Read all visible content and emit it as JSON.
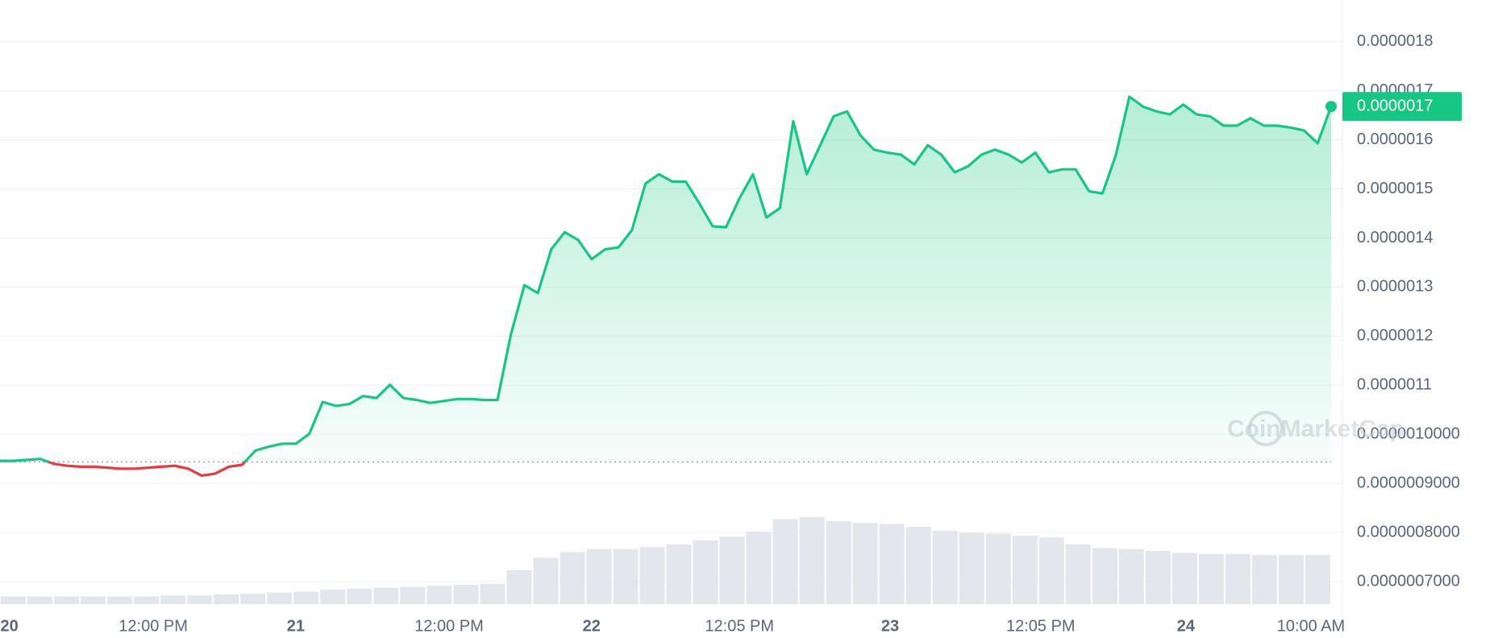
{
  "chart_data": {
    "type": "line",
    "x": [
      0,
      1,
      2,
      3,
      4,
      5,
      6,
      7,
      8,
      9,
      10,
      11,
      12,
      13,
      14,
      15,
      16,
      17,
      18,
      19,
      20,
      21,
      22,
      23,
      24,
      25,
      26,
      27,
      28,
      29,
      30,
      31,
      32,
      33,
      34,
      35,
      36,
      37,
      38,
      39,
      40,
      41,
      42,
      43,
      44,
      45,
      46,
      47,
      48,
      49,
      50,
      51,
      52,
      53,
      54,
      55,
      56,
      57,
      58,
      59,
      60,
      61,
      62,
      63,
      64,
      65,
      66,
      67,
      68,
      69,
      70,
      71,
      72,
      73,
      74,
      75,
      76,
      77,
      78,
      79,
      80,
      81,
      82,
      83,
      84,
      85,
      86,
      87,
      88,
      89,
      90,
      91,
      92,
      93,
      94,
      95,
      96,
      97,
      98,
      99
    ],
    "series": [
      {
        "color": "#16c784",
        "below_color": "#ea3943",
        "values": [
          9.46e-07,
          9.46e-07,
          9.48e-07,
          9.5e-07,
          9.4e-07,
          9.36e-07,
          9.34e-07,
          9.34e-07,
          9.32e-07,
          9.3e-07,
          9.3e-07,
          9.32e-07,
          9.34e-07,
          9.36e-07,
          9.3e-07,
          9.16e-07,
          9.2e-07,
          9.34e-07,
          9.38e-07,
          9.67e-07,
          9.75e-07,
          9.81e-07,
          9.81e-07,
          1.001e-06,
          1.066e-06,
          1.058e-06,
          1.062e-06,
          1.078e-06,
          1.074e-06,
          1.101e-06,
          1.074e-06,
          1.07e-06,
          1.064e-06,
          1.068e-06,
          1.072e-06,
          1.072e-06,
          1.07e-06,
          1.07e-06,
          1.204e-06,
          1.304e-06,
          1.288e-06,
          1.377e-06,
          1.412e-06,
          1.396e-06,
          1.357e-06,
          1.377e-06,
          1.381e-06,
          1.416e-06,
          1.511e-06,
          1.53e-06,
          1.515e-06,
          1.515e-06,
          1.471e-06,
          1.424e-06,
          1.422e-06,
          1.481e-06,
          1.53e-06,
          1.442e-06,
          1.461e-06,
          1.638e-06,
          1.53e-06,
          1.589e-06,
          1.648e-06,
          1.658e-06,
          1.609e-06,
          1.58e-06,
          1.574e-06,
          1.57e-06,
          1.55e-06,
          1.589e-06,
          1.57e-06,
          1.534e-06,
          1.546e-06,
          1.57e-06,
          1.58e-06,
          1.57e-06,
          1.554e-06,
          1.574e-06,
          1.534e-06,
          1.54e-06,
          1.54e-06,
          1.495e-06,
          1.491e-06,
          1.57e-06,
          1.688e-06,
          1.668e-06,
          1.658e-06,
          1.652e-06,
          1.672e-06,
          1.652e-06,
          1.648e-06,
          1.629e-06,
          1.629e-06,
          1.644e-06,
          1.629e-06,
          1.629e-06,
          1.625e-06,
          1.619e-06,
          1.593e-06,
          1.668e-06
        ]
      }
    ],
    "baseline": 9.44e-07,
    "last_label": "0.0000017",
    "xlim": [
      0,
      99
    ],
    "xticks": [
      {
        "value": 0.7,
        "label": "20"
      },
      {
        "value": 11.4,
        "label": "12:00 PM"
      },
      {
        "value": 22,
        "label": "21"
      },
      {
        "value": 33.4,
        "label": "12:00 PM"
      },
      {
        "value": 44,
        "label": "22"
      },
      {
        "value": 55,
        "label": "12:05 PM"
      },
      {
        "value": 66.2,
        "label": "23"
      },
      {
        "value": 77.4,
        "label": "12:05 PM"
      },
      {
        "value": 88.2,
        "label": "24"
      },
      {
        "value": 97.5,
        "label": "10:00 AM"
      }
    ],
    "ylim": [
      6.54e-07,
      1.885e-06
    ],
    "yticks": [
      {
        "value": 1.8e-06,
        "label": "0.0000018"
      },
      {
        "value": 1.7e-06,
        "label": "0.0000017"
      },
      {
        "value": 1.6e-06,
        "label": "0.0000016"
      },
      {
        "value": 1.5e-06,
        "label": "0.0000015"
      },
      {
        "value": 1.4e-06,
        "label": "0.0000014"
      },
      {
        "value": 1.3e-06,
        "label": "0.0000013"
      },
      {
        "value": 1.2e-06,
        "label": "0.0000012"
      },
      {
        "value": 1.1e-06,
        "label": "0.0000011"
      },
      {
        "value": 1e-06,
        "label": "0.0000010000"
      },
      {
        "value": 9e-07,
        "label": "0.0000009000"
      },
      {
        "value": 8e-07,
        "label": "0.0000008000"
      },
      {
        "value": 7e-07,
        "label": "0.0000007000"
      }
    ],
    "grid": true,
    "volume": {
      "color": "#e3e6ec",
      "ylim": [
        0,
        100
      ],
      "values": [
        8,
        8,
        8,
        8,
        8,
        8,
        9,
        9,
        10,
        11,
        12,
        13,
        15,
        16,
        17,
        18,
        19,
        20,
        21,
        35,
        48,
        54,
        57,
        57,
        59,
        62,
        66,
        70,
        75,
        88,
        90,
        86,
        84,
        83,
        80,
        76,
        74,
        73,
        71,
        69,
        62,
        58,
        57,
        55,
        53,
        52,
        52,
        51,
        51,
        51
      ]
    },
    "watermark": "CoinMarketCap"
  }
}
